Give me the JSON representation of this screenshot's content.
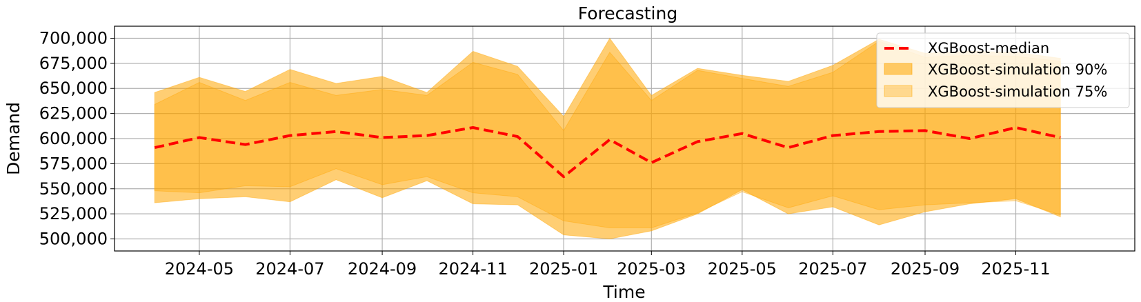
{
  "chart_data": {
    "type": "area",
    "title": "Forecasting",
    "xlabel": "Time",
    "ylabel": "Demand",
    "x": [
      "2024-04-01",
      "2024-05-01",
      "2024-06-01",
      "2024-07-01",
      "2024-08-01",
      "2024-09-01",
      "2024-10-01",
      "2024-11-01",
      "2024-12-01",
      "2025-01-01",
      "2025-02-01",
      "2025-03-01",
      "2025-04-01",
      "2025-05-01",
      "2025-06-01",
      "2025-07-01",
      "2025-08-01",
      "2025-09-01",
      "2025-10-01",
      "2025-11-01",
      "2025-12-01"
    ],
    "xlim": [
      "2024-03-05",
      "2026-01-20"
    ],
    "ylim": [
      488000,
      712000
    ],
    "x_ticks": [
      "2024-05",
      "2024-07",
      "2024-09",
      "2024-11",
      "2025-01",
      "2025-03",
      "2025-05",
      "2025-07",
      "2025-09",
      "2025-11"
    ],
    "y_ticks": [
      "500,000",
      "525,000",
      "550,000",
      "575,000",
      "600,000",
      "625,000",
      "650,000",
      "675,000",
      "700,000"
    ],
    "y_tick_values": [
      500000,
      525000,
      550000,
      575000,
      600000,
      625000,
      650000,
      675000,
      700000
    ],
    "grid": true,
    "legend_position": "top-right",
    "series": [
      {
        "name": "XGBoost-median",
        "kind": "line",
        "style": "dashed",
        "color": "#ff0000",
        "values": [
          591000,
          601000,
          594000,
          603000,
          607000,
          601000,
          603000,
          611000,
          602000,
          562000,
          599000,
          576000,
          597000,
          605000,
          591000,
          603000,
          607000,
          608000,
          600000,
          611000,
          601000
        ]
      },
      {
        "name": "XGBoost-simulation 90%",
        "kind": "band",
        "color": "#ffa500",
        "opacity": 0.55,
        "lower": [
          536000,
          540000,
          542000,
          537000,
          559000,
          541000,
          558000,
          535000,
          534000,
          504000,
          500000,
          508000,
          525000,
          549000,
          525000,
          532000,
          514000,
          527000,
          535000,
          540000,
          522000
        ],
        "upper": [
          646000,
          661000,
          647000,
          669000,
          655000,
          662000,
          646000,
          687000,
          672000,
          622000,
          700000,
          643000,
          670000,
          663000,
          657000,
          673000,
          699000,
          685000,
          687000,
          686000,
          680000
        ]
      },
      {
        "name": "XGBoost-simulation 75%",
        "kind": "band",
        "color": "#ffa500",
        "opacity": 0.35,
        "lower": [
          548000,
          546000,
          553000,
          552000,
          570000,
          554000,
          562000,
          546000,
          542000,
          518000,
          511000,
          511000,
          526000,
          547000,
          531000,
          543000,
          529000,
          534000,
          536000,
          538000,
          524000
        ],
        "upper": [
          634000,
          656000,
          638000,
          656000,
          643000,
          649000,
          643000,
          676000,
          664000,
          608000,
          686000,
          638000,
          668000,
          660000,
          652000,
          666000,
          697000,
          681000,
          683000,
          682000,
          677000
        ]
      }
    ]
  }
}
